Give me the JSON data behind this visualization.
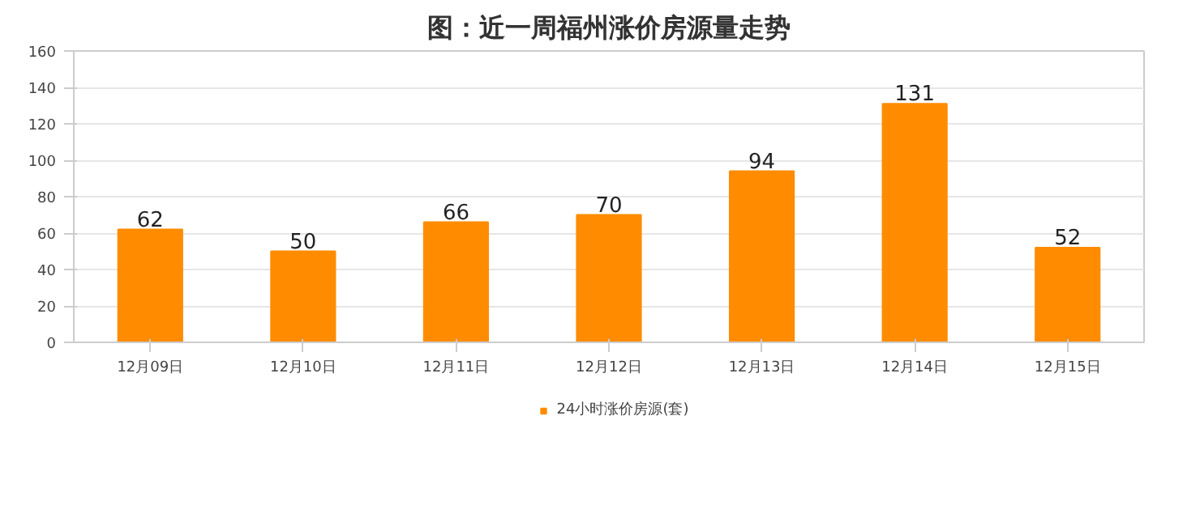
{
  "chart_data": {
    "type": "bar",
    "title": "图：近一周福州涨价房源量走势",
    "categories": [
      "12月09日",
      "12月10日",
      "12月11日",
      "12月12日",
      "12月13日",
      "12月14日",
      "12月15日"
    ],
    "series": [
      {
        "name": "24小时涨价房源(套)",
        "color": "#ff8c00",
        "values": [
          62,
          50,
          66,
          70,
          94,
          131,
          52
        ]
      }
    ],
    "ylim": [
      0,
      160
    ],
    "yticks": [
      0,
      20,
      40,
      60,
      80,
      100,
      120,
      140,
      160
    ],
    "grid": "y",
    "legend": "bottom",
    "data_labels": true
  }
}
